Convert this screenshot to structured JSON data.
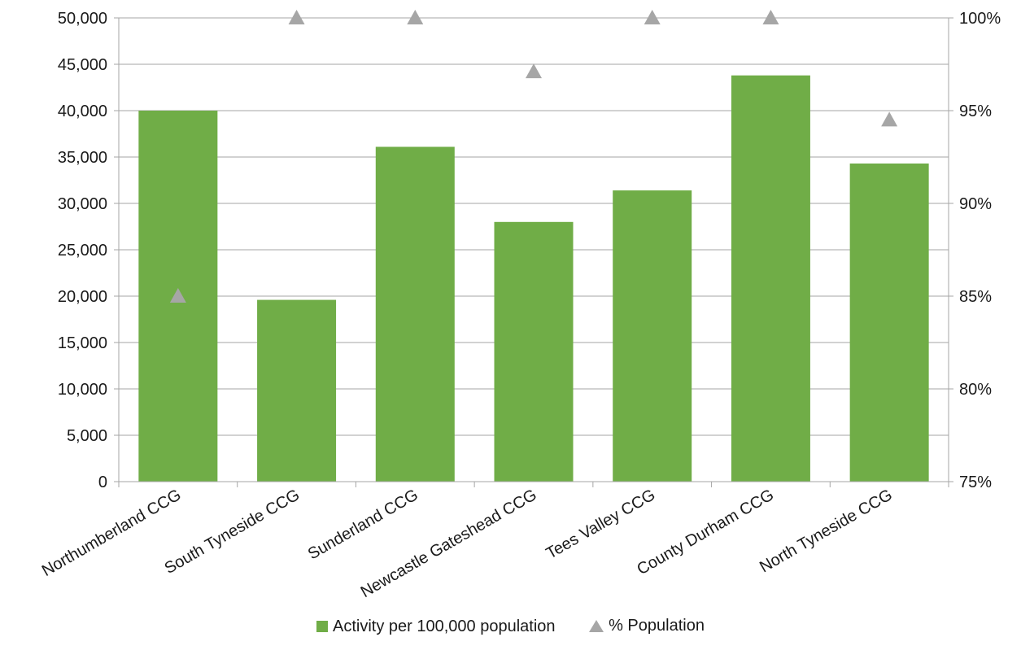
{
  "chart_data": {
    "type": "bar",
    "categories": [
      "Northumberland CCG",
      "South Tyneside CCG",
      "Sunderland CCG",
      "Newcastle Gateshead CCG",
      "Tees Valley CCG",
      "County Durham CCG",
      "North Tyneside CCG"
    ],
    "series": [
      {
        "name": "Activity per 100,000 population",
        "kind": "bar",
        "axis": "left",
        "color": "#70ad47",
        "values": [
          40000,
          19600,
          36100,
          28000,
          31400,
          43800,
          34300
        ]
      },
      {
        "name": "% Population",
        "kind": "marker",
        "marker": "triangle",
        "axis": "right",
        "color": "#a6a6a6",
        "values": [
          85,
          100,
          100,
          97.1,
          100,
          100,
          94.5
        ]
      }
    ],
    "y_left": {
      "min": 0,
      "max": 50000,
      "step": 5000,
      "tick_labels": [
        "0",
        "5,000",
        "10,000",
        "15,000",
        "20,000",
        "25,000",
        "30,000",
        "35,000",
        "40,000",
        "45,000",
        "50,000"
      ]
    },
    "y_right": {
      "min": 75,
      "max": 100,
      "step": 5,
      "tick_labels": [
        "75%",
        "80%",
        "85%",
        "90%",
        "95%",
        "100%"
      ]
    },
    "grid": true,
    "legend_position": "bottom"
  }
}
